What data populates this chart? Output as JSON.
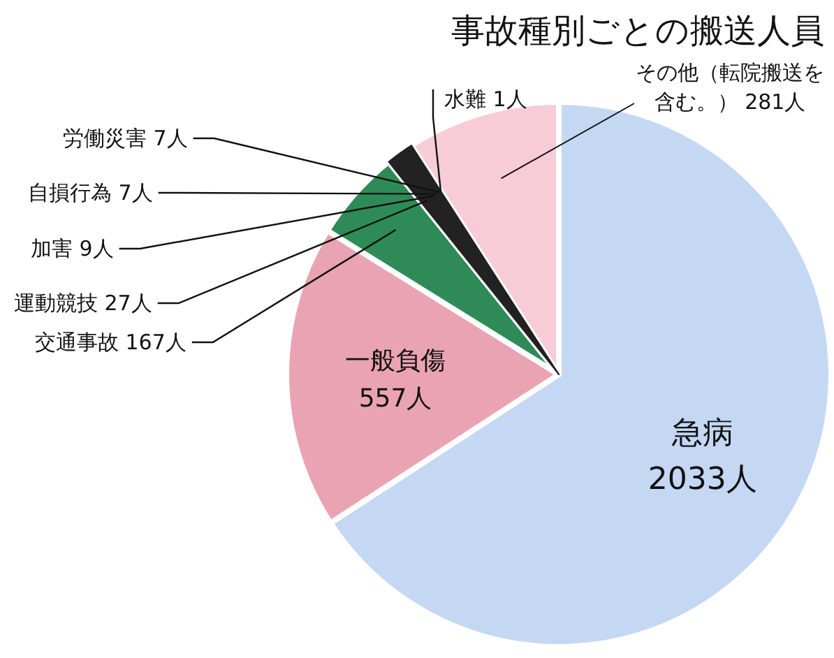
{
  "chart_data": {
    "type": "pie",
    "title": "事故種別ごとの搬送人員",
    "categories": [
      "急病",
      "一般負傷",
      "交通事故",
      "運動競技",
      "加害",
      "自損行為",
      "労働災害",
      "水難",
      "その他（転院搬送を含む。）"
    ],
    "values": [
      2033,
      557,
      167,
      27,
      9,
      7,
      7,
      1,
      281
    ],
    "value_labels": [
      "2033人",
      "557人",
      "167人",
      "27人",
      "9人",
      "7人",
      "7人",
      "1人",
      "281人"
    ],
    "colors": [
      "#c4d8f4",
      "#eaa3b3",
      "#2e8b57",
      "#222222",
      "#222222",
      "#222222",
      "#222222",
      "#222222",
      "#f7ccd6"
    ]
  }
}
